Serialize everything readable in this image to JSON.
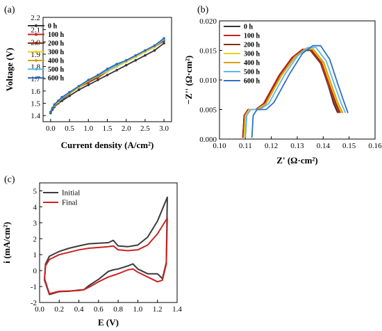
{
  "chart_data": [
    {
      "panel": "(a)",
      "type": "line",
      "xlabel": "Current density (A/cm²)",
      "ylabel": "Voltage (V)",
      "xlim": [
        -0.2,
        3.2
      ],
      "ylim": [
        1.35,
        2.2
      ],
      "xticks": [
        "0.0",
        "0.5",
        "1.0",
        "1.5",
        "2.0",
        "2.5",
        "3.0"
      ],
      "yticks": [
        "1.4",
        "1.5",
        "1.6",
        "1.7",
        "1.8",
        "1.9",
        "2.0",
        "2.1",
        "2.2"
      ],
      "legend": "top-left",
      "series": [
        {
          "name": "0 h",
          "color": "#333333",
          "x": [
            0.0,
            0.05,
            0.1,
            0.2,
            0.3,
            0.5,
            0.75,
            1.0,
            1.25,
            1.5,
            1.75,
            2.0,
            2.25,
            2.5,
            2.75,
            3.0
          ],
          "y": [
            1.42,
            1.45,
            1.47,
            1.5,
            1.52,
            1.56,
            1.61,
            1.65,
            1.69,
            1.73,
            1.77,
            1.81,
            1.85,
            1.89,
            1.93,
            1.99
          ]
        },
        {
          "name": "100 h",
          "color": "#cc1f1f",
          "x": [
            0.0,
            0.05,
            0.1,
            0.2,
            0.3,
            0.5,
            0.75,
            1.0,
            1.25,
            1.5,
            1.75,
            2.0,
            2.25,
            2.5,
            2.75,
            3.0
          ],
          "y": [
            1.43,
            1.46,
            1.48,
            1.51,
            1.53,
            1.58,
            1.63,
            1.67,
            1.71,
            1.76,
            1.8,
            1.84,
            1.88,
            1.92,
            1.96,
            2.01
          ]
        },
        {
          "name": "200 h",
          "color": "#8b2a0c",
          "x": [
            0.0,
            0.05,
            0.1,
            0.2,
            0.3,
            0.5,
            0.75,
            1.0,
            1.25,
            1.5,
            1.75,
            2.0,
            2.25,
            2.5,
            2.75,
            3.0
          ],
          "y": [
            1.43,
            1.46,
            1.48,
            1.51,
            1.53,
            1.58,
            1.63,
            1.67,
            1.71,
            1.76,
            1.8,
            1.84,
            1.88,
            1.92,
            1.96,
            2.01
          ]
        },
        {
          "name": "300 h",
          "color": "#e8d21a",
          "x": [
            0.0,
            0.05,
            0.1,
            0.2,
            0.3,
            0.5,
            0.75,
            1.0,
            1.25,
            1.5,
            1.75,
            2.0,
            2.25,
            2.5,
            2.75,
            3.0
          ],
          "y": [
            1.43,
            1.46,
            1.48,
            1.51,
            1.54,
            1.58,
            1.63,
            1.68,
            1.72,
            1.76,
            1.8,
            1.84,
            1.88,
            1.92,
            1.96,
            2.02
          ]
        },
        {
          "name": "400 h",
          "color": "#d4a017",
          "x": [
            0.0,
            0.05,
            0.1,
            0.2,
            0.3,
            0.5,
            0.75,
            1.0,
            1.25,
            1.5,
            1.75,
            2.0,
            2.25,
            2.5,
            2.75,
            3.0
          ],
          "y": [
            1.43,
            1.46,
            1.48,
            1.52,
            1.54,
            1.58,
            1.64,
            1.68,
            1.72,
            1.77,
            1.81,
            1.85,
            1.89,
            1.93,
            1.97,
            2.02
          ]
        },
        {
          "name": "500 h",
          "color": "#5bb8e8",
          "x": [
            0.0,
            0.05,
            0.1,
            0.2,
            0.3,
            0.5,
            0.75,
            1.0,
            1.25,
            1.5,
            1.75,
            2.0,
            2.25,
            2.5,
            2.75,
            3.0
          ],
          "y": [
            1.43,
            1.46,
            1.49,
            1.52,
            1.54,
            1.59,
            1.64,
            1.69,
            1.73,
            1.77,
            1.81,
            1.85,
            1.89,
            1.93,
            1.97,
            2.02
          ]
        },
        {
          "name": "600 h",
          "color": "#2f6fbf",
          "x": [
            0.0,
            0.05,
            0.1,
            0.2,
            0.3,
            0.5,
            0.75,
            1.0,
            1.25,
            1.5,
            1.75,
            2.0,
            2.25,
            2.5,
            2.75,
            3.0
          ],
          "y": [
            1.43,
            1.46,
            1.49,
            1.52,
            1.55,
            1.59,
            1.64,
            1.69,
            1.73,
            1.78,
            1.82,
            1.85,
            1.89,
            1.93,
            1.97,
            2.03
          ]
        }
      ]
    },
    {
      "panel": "(b)",
      "type": "line",
      "xlabel": "Z' (Ω·cm²)",
      "ylabel": "−Z'' (Ω·cm²)",
      "xlim": [
        0.1,
        0.16
      ],
      "ylim": [
        0.0,
        0.02
      ],
      "xticks": [
        "0.10",
        "0.11",
        "0.12",
        "0.13",
        "0.14",
        "0.15",
        "0.16"
      ],
      "yticks": [
        "0.000",
        "0.005",
        "0.010",
        "0.015",
        "0.020"
      ],
      "legend": "top-left",
      "series": [
        {
          "name": "0 h",
          "color": "#333333",
          "x": [
            0.109,
            0.1095,
            0.111,
            0.114,
            0.117,
            0.123,
            0.128,
            0.132,
            0.135,
            0.139,
            0.142,
            0.144,
            0.1455
          ],
          "y": [
            0.0003,
            0.004,
            0.005,
            0.005,
            0.006,
            0.0108,
            0.0138,
            0.015,
            0.015,
            0.0128,
            0.009,
            0.006,
            0.0045
          ]
        },
        {
          "name": "100 h",
          "color": "#cc1f1f",
          "x": [
            0.109,
            0.1095,
            0.111,
            0.114,
            0.117,
            0.123,
            0.128,
            0.132,
            0.135,
            0.139,
            0.142,
            0.1445,
            0.146
          ],
          "y": [
            0.0003,
            0.004,
            0.005,
            0.005,
            0.006,
            0.0108,
            0.0138,
            0.0152,
            0.0151,
            0.013,
            0.0092,
            0.006,
            0.0045
          ]
        },
        {
          "name": "200 h",
          "color": "#8b2a0c",
          "x": [
            0.1095,
            0.11,
            0.1115,
            0.1145,
            0.1175,
            0.1235,
            0.1285,
            0.1325,
            0.1355,
            0.1395,
            0.1425,
            0.145,
            0.1465
          ],
          "y": [
            0.0003,
            0.004,
            0.005,
            0.005,
            0.006,
            0.0108,
            0.0138,
            0.0152,
            0.0151,
            0.013,
            0.0092,
            0.006,
            0.0045
          ]
        },
        {
          "name": "300 h",
          "color": "#e8d21a",
          "x": [
            0.1095,
            0.11,
            0.1115,
            0.1145,
            0.1178,
            0.1238,
            0.1288,
            0.1328,
            0.1358,
            0.1398,
            0.1428,
            0.1455,
            0.147
          ],
          "y": [
            0.0003,
            0.004,
            0.005,
            0.005,
            0.006,
            0.0108,
            0.0138,
            0.0152,
            0.0152,
            0.013,
            0.0092,
            0.006,
            0.0045
          ]
        },
        {
          "name": "400 h",
          "color": "#d4a017",
          "x": [
            0.11,
            0.1105,
            0.112,
            0.115,
            0.118,
            0.124,
            0.129,
            0.133,
            0.1362,
            0.1402,
            0.1432,
            0.1458,
            0.1475
          ],
          "y": [
            0.0003,
            0.004,
            0.005,
            0.005,
            0.006,
            0.0108,
            0.0138,
            0.0153,
            0.0152,
            0.013,
            0.0092,
            0.006,
            0.0045
          ]
        },
        {
          "name": "500 h",
          "color": "#5bb8e8",
          "x": [
            0.11,
            0.1105,
            0.112,
            0.1155,
            0.119,
            0.125,
            0.13,
            0.134,
            0.1372,
            0.1412,
            0.1442,
            0.1468,
            0.1485
          ],
          "y": [
            0.0003,
            0.004,
            0.005,
            0.005,
            0.006,
            0.0108,
            0.014,
            0.0155,
            0.0155,
            0.0132,
            0.0094,
            0.0062,
            0.0045
          ]
        },
        {
          "name": "600 h",
          "color": "#2f6fbf",
          "x": [
            0.1125,
            0.113,
            0.1145,
            0.118,
            0.121,
            0.127,
            0.132,
            0.136,
            0.139,
            0.1425,
            0.1455,
            0.148,
            0.1495
          ],
          "y": [
            0.0003,
            0.004,
            0.005,
            0.005,
            0.0062,
            0.011,
            0.0145,
            0.0158,
            0.0158,
            0.0135,
            0.0095,
            0.0063,
            0.0045
          ]
        }
      ]
    },
    {
      "panel": "(c)",
      "type": "line",
      "xlabel": "E (V)",
      "ylabel": "i (mA/cm²)",
      "xlim": [
        0.0,
        1.4
      ],
      "ylim": [
        -2,
        5.5
      ],
      "xticks": [
        "0.0",
        "0.2",
        "0.4",
        "0.6",
        "0.8",
        "1.0",
        "1.2",
        "1.4"
      ],
      "yticks": [
        "-2",
        "-1",
        "0",
        "1",
        "2",
        "3",
        "4",
        "5"
      ],
      "legend": "top-left",
      "series": [
        {
          "name": "Initial",
          "color": "#3a3a3a",
          "x": [
            0.05,
            0.06,
            0.1,
            0.2,
            0.3,
            0.4,
            0.5,
            0.6,
            0.7,
            0.75,
            0.8,
            0.9,
            1.0,
            1.1,
            1.2,
            1.26,
            1.3,
            1.29,
            1.25,
            1.2,
            1.1,
            1.0,
            0.95,
            0.9,
            0.8,
            0.75,
            0.7,
            0.6,
            0.5,
            0.45,
            0.4,
            0.3,
            0.2,
            0.1,
            0.05
          ],
          "y": [
            -0.6,
            0.4,
            0.9,
            1.2,
            1.4,
            1.55,
            1.68,
            1.72,
            1.75,
            1.9,
            1.55,
            1.5,
            1.6,
            2.1,
            3.1,
            4.0,
            4.6,
            0.5,
            -0.5,
            -0.2,
            -0.2,
            0.1,
            0.42,
            0.3,
            0.1,
            0.05,
            -0.05,
            -0.55,
            -0.95,
            -1.2,
            -1.22,
            -1.3,
            -1.32,
            -1.5,
            -0.6
          ]
        },
        {
          "name": "Final",
          "color": "#cc2222",
          "x": [
            0.05,
            0.06,
            0.1,
            0.2,
            0.3,
            0.4,
            0.5,
            0.6,
            0.7,
            0.75,
            0.8,
            0.9,
            1.0,
            1.1,
            1.2,
            1.26,
            1.3,
            1.29,
            1.25,
            1.2,
            1.1,
            1.0,
            0.95,
            0.9,
            0.8,
            0.75,
            0.7,
            0.6,
            0.5,
            0.45,
            0.4,
            0.3,
            0.2,
            0.1,
            0.05
          ],
          "y": [
            -0.5,
            0.3,
            0.7,
            1.0,
            1.15,
            1.3,
            1.4,
            1.45,
            1.5,
            1.55,
            1.3,
            1.25,
            1.3,
            1.6,
            2.3,
            2.9,
            3.3,
            0.4,
            -0.6,
            -0.7,
            -0.4,
            -0.1,
            0.1,
            0.05,
            -0.2,
            -0.3,
            -0.4,
            -0.7,
            -1.05,
            -1.2,
            -1.25,
            -1.28,
            -1.3,
            -1.45,
            -0.5
          ]
        }
      ]
    }
  ]
}
